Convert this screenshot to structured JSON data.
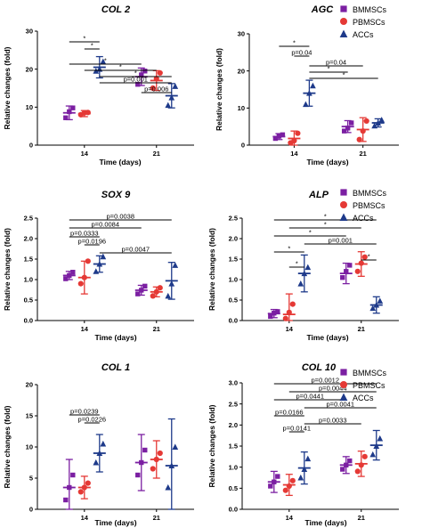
{
  "legend": {
    "entries": [
      {
        "name": "BMMSCs",
        "color": "#7B1FA2",
        "marker": "square"
      },
      {
        "name": "PBMSCs",
        "color": "#E53935",
        "marker": "circle"
      },
      {
        "name": "ACCs",
        "color": "#1E3A8A",
        "marker": "triangle"
      }
    ]
  },
  "chart_data": [
    {
      "type": "scatter",
      "title": "COL 2",
      "xlabel": "Time (days)",
      "ylabel": "Relative changes (fold)",
      "categories": [
        "14",
        "21"
      ],
      "ylim": [
        0,
        30
      ],
      "yticks": [
        0,
        10,
        20,
        30
      ],
      "series": [
        {
          "name": "BMMSCs",
          "mean": [
            8.5,
            18.0
          ],
          "sd": [
            1.8,
            2.3
          ],
          "points": [
            [
              7.2,
              8.8,
              9.8
            ],
            [
              16.0,
              18.5,
              19.5
            ]
          ]
        },
        {
          "name": "PBMSCs",
          "mean": [
            8.3,
            17.0
          ],
          "sd": [
            0.8,
            2.6
          ],
          "points": [
            [
              8.0,
              8.5,
              8.6
            ],
            [
              15.0,
              17.5,
              19.0
            ]
          ]
        },
        {
          "name": "ACCs",
          "mean": [
            20.5,
            13.0
          ],
          "sd": [
            2.8,
            3.2
          ],
          "points": [
            [
              19.5,
              20.0,
              22.0
            ],
            [
              10.5,
              12.5,
              15.5
            ]
          ]
        }
      ],
      "annotations": [
        {
          "label": "*",
          "from": [
            0,
            0
          ],
          "to": [
            0,
            2
          ]
        },
        {
          "label": "*",
          "from": [
            0,
            1
          ],
          "to": [
            0,
            2
          ]
        },
        {
          "label": "*",
          "from": [
            0,
            0
          ],
          "to": [
            1,
            0
          ]
        },
        {
          "label": "*",
          "from": [
            0,
            1
          ],
          "to": [
            1,
            1
          ]
        },
        {
          "label": "*",
          "from": [
            0,
            2
          ],
          "to": [
            1,
            2
          ]
        },
        {
          "label": "p=0.001",
          "from": [
            0,
            2
          ],
          "to": [
            1,
            2
          ]
        },
        {
          "label": "p=0.006",
          "from": [
            1,
            0
          ],
          "to": [
            1,
            2
          ]
        }
      ]
    },
    {
      "type": "scatter",
      "title": "AGC",
      "xlabel": "Time (days)",
      "ylabel": "Relative changes (fold)",
      "categories": [
        "14",
        "21"
      ],
      "ylim": [
        0,
        30
      ],
      "yticks": [
        0,
        10,
        20,
        30
      ],
      "series": [
        {
          "name": "BMMSCs",
          "mean": [
            2.3,
            5.0
          ],
          "sd": [
            0.8,
            1.6
          ],
          "points": [
            [
              1.8,
              2.4,
              2.8
            ],
            [
              3.8,
              4.6,
              6.0
            ]
          ]
        },
        {
          "name": "PBMSCs",
          "mean": [
            1.8,
            4.2
          ],
          "sd": [
            2.0,
            3.2
          ],
          "points": [
            [
              0.6,
              1.2,
              3.2
            ],
            [
              1.5,
              3.8,
              6.5
            ]
          ]
        },
        {
          "name": "ACCs",
          "mean": [
            14.0,
            6.0
          ],
          "sd": [
            3.5,
            1.1
          ],
          "points": [
            [
              11.0,
              14.0,
              16.0
            ],
            [
              5.2,
              6.0,
              6.8
            ]
          ]
        }
      ],
      "annotations": [
        {
          "label": "*",
          "from": [
            0,
            0
          ],
          "to": [
            0,
            2
          ]
        },
        {
          "label": "p=0.04",
          "from": [
            0,
            1
          ],
          "to": [
            0,
            2
          ]
        },
        {
          "label": "p=0.04",
          "from": [
            0,
            2
          ],
          "to": [
            1,
            1
          ]
        },
        {
          "label": "*",
          "from": [
            0,
            2
          ],
          "to": [
            1,
            0
          ]
        },
        {
          "label": "*",
          "from": [
            0,
            2
          ],
          "to": [
            1,
            2
          ]
        }
      ]
    },
    {
      "type": "scatter",
      "title": "SOX 9",
      "xlabel": "Time (days)",
      "ylabel": "Relative changes (fold)",
      "categories": [
        "14",
        "21"
      ],
      "ylim": [
        0.0,
        2.5
      ],
      "yticks": [
        0.0,
        0.5,
        1.0,
        1.5,
        2.0,
        2.5
      ],
      "series": [
        {
          "name": "BMMSCs",
          "mean": [
            1.1,
            0.74
          ],
          "sd": [
            0.1,
            0.12
          ],
          "points": [
            [
              1.02,
              1.1,
              1.18
            ],
            [
              0.65,
              0.74,
              0.84
            ]
          ]
        },
        {
          "name": "PBMSCs",
          "mean": [
            1.05,
            0.7
          ],
          "sd": [
            0.4,
            0.12
          ],
          "points": [
            [
              0.9,
              1.05,
              1.45
            ],
            [
              0.6,
              0.7,
              0.8
            ]
          ]
        },
        {
          "name": "ACCs",
          "mean": [
            1.38,
            0.97
          ],
          "sd": [
            0.2,
            0.45
          ],
          "points": [
            [
              1.2,
              1.38,
              1.56
            ],
            [
              0.6,
              0.9,
              1.35
            ]
          ]
        }
      ],
      "annotations": [
        {
          "label": "p=0.0038",
          "from": [
            0,
            0
          ],
          "to": [
            1,
            2
          ]
        },
        {
          "label": "p=0.0084",
          "from": [
            0,
            0
          ],
          "to": [
            1,
            0
          ]
        },
        {
          "label": "p=0.0333",
          "from": [
            0,
            0
          ],
          "to": [
            0,
            2
          ]
        },
        {
          "label": "p=0.0196",
          "from": [
            0,
            1
          ],
          "to": [
            0,
            2
          ]
        },
        {
          "label": "p=0.0047",
          "from": [
            0,
            2
          ],
          "to": [
            1,
            2
          ]
        }
      ]
    },
    {
      "type": "scatter",
      "title": "ALP",
      "xlabel": "Time (days)",
      "ylabel": "Relative changes (fold)",
      "categories": [
        "14",
        "21"
      ],
      "ylim": [
        0.0,
        2.5
      ],
      "yticks": [
        0.0,
        0.5,
        1.0,
        1.5,
        2.0,
        2.5
      ],
      "series": [
        {
          "name": "BMMSCs",
          "mean": [
            0.17,
            1.15
          ],
          "sd": [
            0.1,
            0.25
          ],
          "points": [
            [
              0.1,
              0.18,
              0.22
            ],
            [
              1.05,
              1.2,
              1.35
            ]
          ]
        },
        {
          "name": "PBMSCs",
          "mean": [
            0.15,
            1.38
          ],
          "sd": [
            0.5,
            0.3
          ],
          "points": [
            [
              0.05,
              0.2,
              0.4
            ],
            [
              1.2,
              1.4,
              1.55
            ]
          ]
        },
        {
          "name": "ACCs",
          "mean": [
            1.15,
            0.38
          ],
          "sd": [
            0.45,
            0.2
          ],
          "points": [
            [
              0.9,
              1.15,
              1.3
            ],
            [
              0.3,
              0.38,
              0.48
            ]
          ]
        }
      ],
      "annotations": [
        {
          "label": "*",
          "from": [
            0,
            0
          ],
          "to": [
            1,
            2
          ]
        },
        {
          "label": "*",
          "from": [
            0,
            1
          ],
          "to": [
            1,
            1
          ]
        },
        {
          "label": "*",
          "from": [
            0,
            0
          ],
          "to": [
            1,
            0
          ]
        },
        {
          "label": "p=0.001",
          "from": [
            0,
            2
          ],
          "to": [
            1,
            2
          ]
        },
        {
          "label": "*",
          "from": [
            0,
            0
          ],
          "to": [
            0,
            2
          ]
        },
        {
          "label": "*",
          "from": [
            1,
            1
          ],
          "to": [
            1,
            2
          ]
        },
        {
          "label": "*",
          "from": [
            0,
            1
          ],
          "to": [
            0,
            2
          ]
        }
      ]
    },
    {
      "type": "scatter",
      "title": "COL 1",
      "xlabel": "Time (days)",
      "ylabel": "Relative changes (fold)",
      "categories": [
        "14",
        "21"
      ],
      "ylim": [
        0,
        20
      ],
      "yticks": [
        0,
        5,
        10,
        15,
        20
      ],
      "series": [
        {
          "name": "BMMSCs",
          "mean": [
            3.5,
            7.5
          ],
          "sd": [
            4.5,
            4.5
          ],
          "points": [
            [
              1.5,
              3.5,
              5.5
            ],
            [
              5.5,
              7.5,
              9.5
            ]
          ]
        },
        {
          "name": "PBMSCs",
          "mean": [
            3.5,
            8.0
          ],
          "sd": [
            1.8,
            3.0
          ],
          "points": [
            [
              2.8,
              3.5,
              4.2
            ],
            [
              6.5,
              8.0,
              9.0
            ]
          ]
        },
        {
          "name": "ACCs",
          "mean": [
            9.0,
            7.0
          ],
          "sd": [
            3.0,
            7.5
          ],
          "points": [
            [
              7.5,
              9.0,
              10.5
            ],
            [
              3.5,
              7.0,
              10.0
            ]
          ]
        }
      ],
      "annotations": [
        {
          "label": "p=0.0239",
          "from": [
            0,
            0
          ],
          "to": [
            0,
            2
          ]
        },
        {
          "label": "p=0.0226",
          "from": [
            0,
            1
          ],
          "to": [
            0,
            2
          ]
        }
      ]
    },
    {
      "type": "scatter",
      "title": "COL 10",
      "xlabel": "Time (days)",
      "ylabel": "Relative changes (fold)",
      "categories": [
        "14",
        "21"
      ],
      "ylim": [
        0.0,
        3.0
      ],
      "yticks": [
        0.0,
        0.5,
        1.0,
        1.5,
        2.0,
        2.5,
        3.0
      ],
      "series": [
        {
          "name": "BMMSCs",
          "mean": [
            0.65,
            1.05
          ],
          "sd": [
            0.25,
            0.2
          ],
          "points": [
            [
              0.55,
              0.65,
              0.78
            ],
            [
              0.95,
              1.05,
              1.15
            ]
          ]
        },
        {
          "name": "PBMSCs",
          "mean": [
            0.58,
            1.08
          ],
          "sd": [
            0.25,
            0.3
          ],
          "points": [
            [
              0.45,
              0.55,
              0.68
            ],
            [
              0.9,
              1.05,
              1.25
            ]
          ]
        },
        {
          "name": "ACCs",
          "mean": [
            0.98,
            1.52
          ],
          "sd": [
            0.38,
            0.35
          ],
          "points": [
            [
              0.75,
              0.95,
              1.2
            ],
            [
              1.3,
              1.5,
              1.68
            ]
          ]
        }
      ],
      "annotations": [
        {
          "label": "p=0.0012",
          "from": [
            0,
            0
          ],
          "to": [
            1,
            2
          ]
        },
        {
          "label": "p=0.0044",
          "from": [
            0,
            1
          ],
          "to": [
            1,
            2
          ]
        },
        {
          "label": "p=0.0441",
          "from": [
            0,
            0
          ],
          "to": [
            1,
            0
          ]
        },
        {
          "label": "p=0.0041",
          "from": [
            0,
            2
          ],
          "to": [
            1,
            2
          ]
        },
        {
          "label": "p=0.0166",
          "from": [
            0,
            0
          ],
          "to": [
            0,
            2
          ]
        },
        {
          "label": "p=0.0033",
          "from": [
            0,
            2
          ],
          "to": [
            1,
            1
          ]
        },
        {
          "label": "p=0.0141",
          "from": [
            0,
            1
          ],
          "to": [
            0,
            2
          ]
        }
      ]
    }
  ]
}
